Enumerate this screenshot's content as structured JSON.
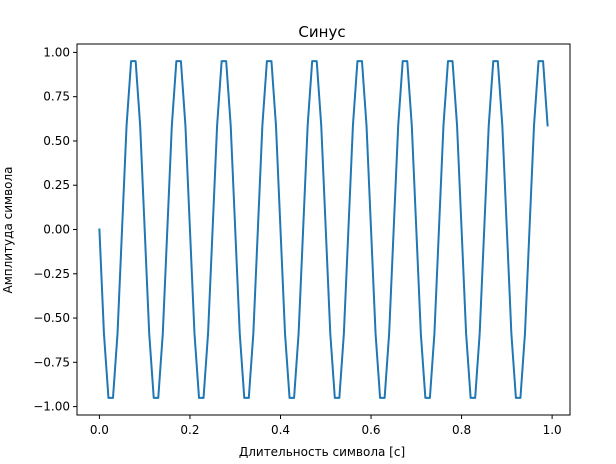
{
  "chart_data": {
    "type": "line",
    "title": "Синус",
    "xlabel": "Длительность символа [с]",
    "ylabel": "Амплитуда символа",
    "xlim": [
      -0.0495,
      1.0395
    ],
    "ylim": [
      -1.0475,
      1.0475
    ],
    "xticks": [
      0.0,
      0.2,
      0.4,
      0.6,
      0.8,
      1.0
    ],
    "xtick_labels": [
      "0.0",
      "0.2",
      "0.4",
      "0.6",
      "0.8",
      "1.0"
    ],
    "yticks": [
      -1.0,
      -0.75,
      -0.5,
      -0.25,
      0.0,
      0.25,
      0.5,
      0.75,
      1.0
    ],
    "ytick_labels": [
      "−1.00",
      "−0.75",
      "−0.50",
      "−0.25",
      "0.00",
      "0.25",
      "0.50",
      "0.75",
      "1.00"
    ],
    "grid": false,
    "series": [
      {
        "color": "#1f77b4",
        "frequency_hz": 10,
        "sample_step": 0.01,
        "x_start": 0.0,
        "x_end": 0.99,
        "x": [
          0.0,
          0.01,
          0.02,
          0.03,
          0.04,
          0.05,
          0.06,
          0.07,
          0.08,
          0.09,
          0.1,
          0.11,
          0.12,
          0.13,
          0.14,
          0.15,
          0.16,
          0.17,
          0.18,
          0.19,
          0.2,
          0.21,
          0.22,
          0.23,
          0.24,
          0.25,
          0.26,
          0.27,
          0.28,
          0.29,
          0.3,
          0.31,
          0.32,
          0.33,
          0.34,
          0.35,
          0.36,
          0.37,
          0.38,
          0.39,
          0.4,
          0.41,
          0.42,
          0.43,
          0.44,
          0.45,
          0.46,
          0.47,
          0.48,
          0.49,
          0.5,
          0.51,
          0.52,
          0.53,
          0.54,
          0.55,
          0.56,
          0.57,
          0.58,
          0.59,
          0.6,
          0.61,
          0.62,
          0.63,
          0.64,
          0.65,
          0.66,
          0.67,
          0.68,
          0.69,
          0.7,
          0.71,
          0.72,
          0.73,
          0.74,
          0.75,
          0.76,
          0.77,
          0.78,
          0.79,
          0.8,
          0.81,
          0.82,
          0.83,
          0.84,
          0.85,
          0.86,
          0.87,
          0.88,
          0.89,
          0.9,
          0.91,
          0.92,
          0.93,
          0.94,
          0.95,
          0.96,
          0.97,
          0.98,
          0.99
        ],
        "values": [
          0.0,
          -0.5878,
          -0.9511,
          -0.9511,
          -0.5878,
          0.0,
          0.5878,
          0.9511,
          0.9511,
          0.5878,
          0.0,
          -0.5878,
          -0.9511,
          -0.9511,
          -0.5878,
          0.0,
          0.5878,
          0.9511,
          0.9511,
          0.5878,
          0.0,
          -0.5878,
          -0.9511,
          -0.9511,
          -0.5878,
          0.0,
          0.5878,
          0.9511,
          0.9511,
          0.5878,
          0.0,
          -0.5878,
          -0.9511,
          -0.9511,
          -0.5878,
          0.0,
          0.5878,
          0.9511,
          0.9511,
          0.5878,
          0.0,
          -0.5878,
          -0.9511,
          -0.9511,
          -0.5878,
          0.0,
          0.5878,
          0.9511,
          0.9511,
          0.5878,
          0.0,
          -0.5878,
          -0.9511,
          -0.9511,
          -0.5878,
          0.0,
          0.5878,
          0.9511,
          0.9511,
          0.5878,
          0.0,
          -0.5878,
          -0.9511,
          -0.9511,
          -0.5878,
          0.0,
          0.5878,
          0.9511,
          0.9511,
          0.5878,
          0.0,
          -0.5878,
          -0.9511,
          -0.9511,
          -0.5878,
          0.0,
          0.5878,
          0.9511,
          0.9511,
          0.5878,
          0.0,
          -0.5878,
          -0.9511,
          -0.9511,
          -0.5878,
          0.0,
          0.5878,
          0.9511,
          0.9511,
          0.5878,
          0.0,
          -0.5878,
          -0.9511,
          -0.9511,
          -0.5878,
          0.0,
          0.5878,
          0.9511,
          0.9511,
          0.5878
        ]
      }
    ]
  }
}
